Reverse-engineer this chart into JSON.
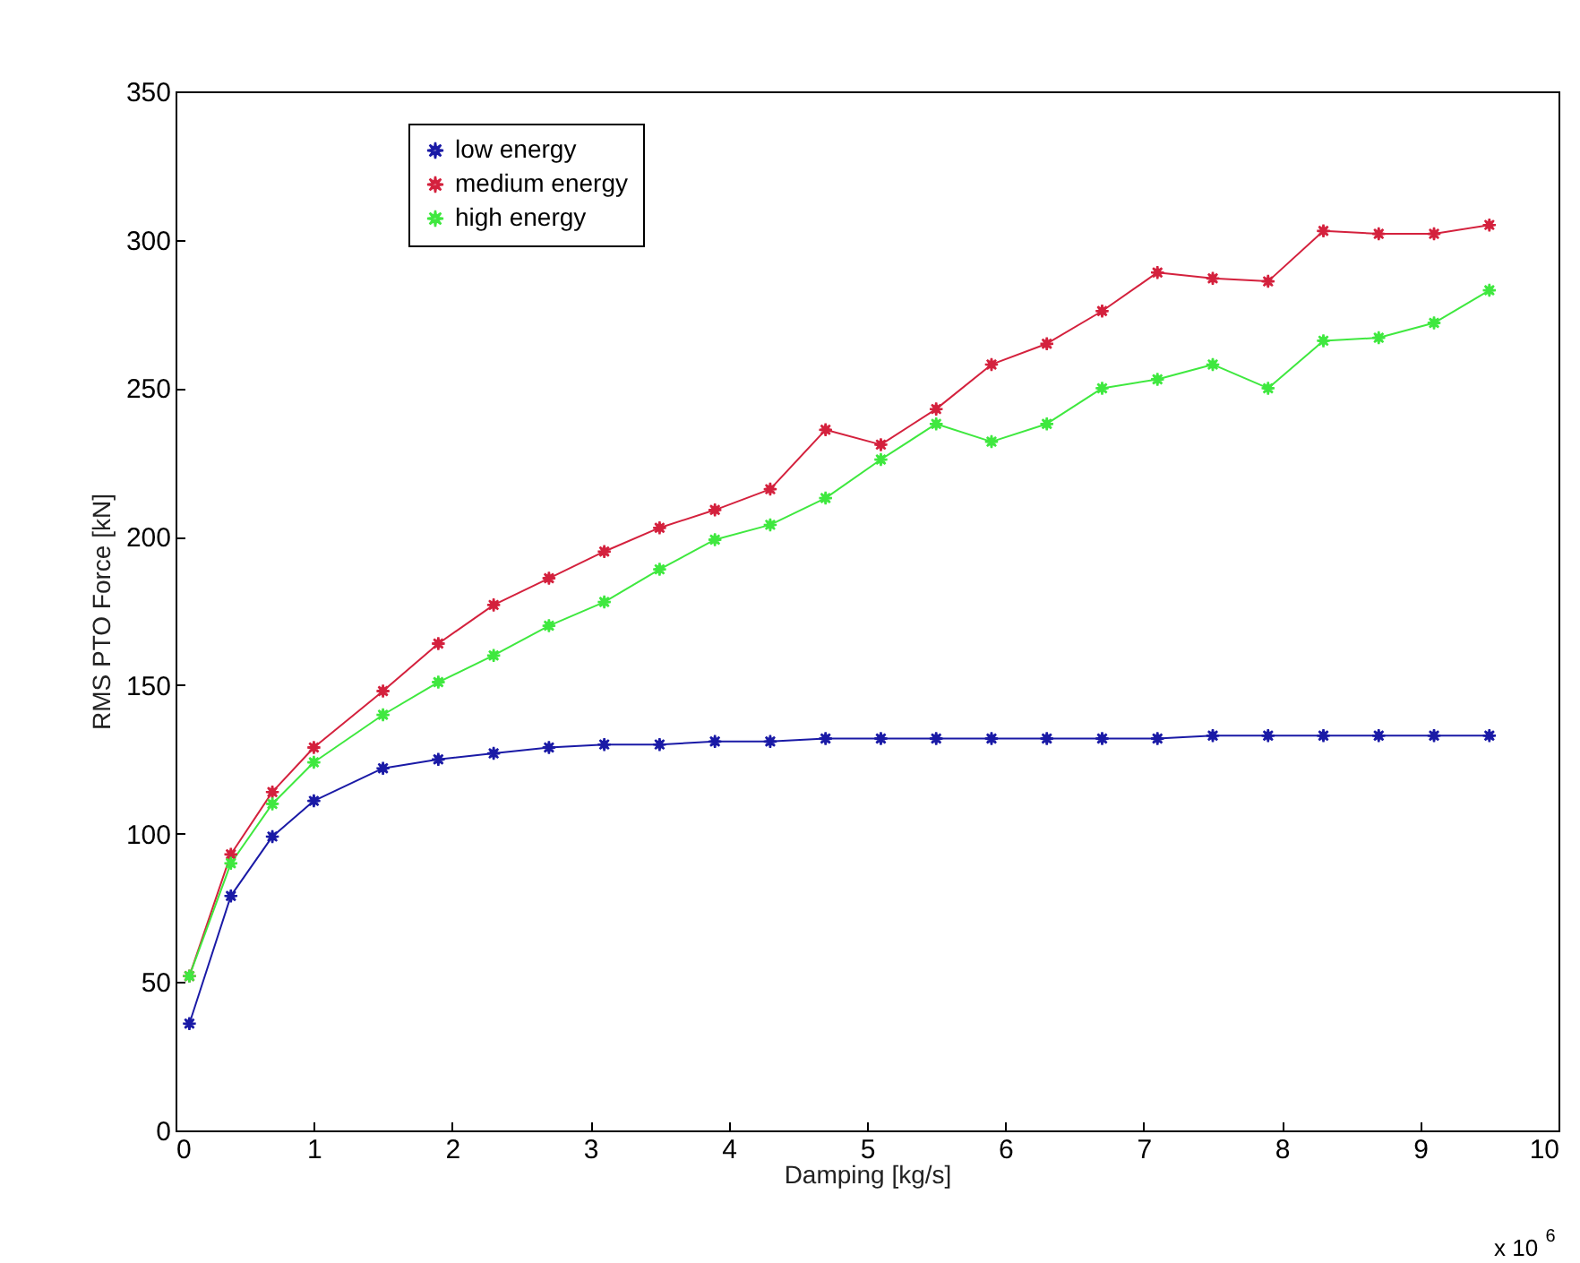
{
  "chart_data": {
    "type": "line",
    "xlabel": "Damping [kg/s]",
    "ylabel": "RMS PTO Force [kN]",
    "x": [
      0.1,
      0.4,
      0.7,
      1.0,
      1.5,
      1.9,
      2.3,
      2.7,
      3.1,
      3.5,
      3.9,
      4.3,
      4.7,
      5.1,
      5.5,
      5.9,
      6.3,
      6.7,
      7.1,
      7.5,
      7.9,
      8.3,
      8.7,
      9.1,
      9.5
    ],
    "series": [
      {
        "name": "low energy",
        "color": "#1a1aa6",
        "values": [
          36,
          79,
          99,
          111,
          122,
          125,
          127,
          129,
          130,
          130,
          131,
          131,
          132,
          132,
          132,
          132,
          132,
          132,
          132,
          133,
          133,
          133,
          133,
          133,
          133
        ]
      },
      {
        "name": "medium energy",
        "color": "#d4213d",
        "values": [
          52,
          93,
          114,
          129,
          148,
          164,
          177,
          186,
          195,
          203,
          209,
          216,
          236,
          231,
          243,
          258,
          265,
          276,
          289,
          287,
          286,
          303,
          302,
          302,
          305
        ]
      },
      {
        "name": "high energy",
        "color": "#3fe83f",
        "values": [
          52,
          90,
          110,
          124,
          140,
          151,
          160,
          170,
          178,
          189,
          199,
          204,
          213,
          226,
          238,
          232,
          238,
          250,
          253,
          258,
          250,
          266,
          267,
          272,
          283
        ]
      }
    ],
    "xlim": [
      0,
      10
    ],
    "xticks": [
      0,
      1,
      2,
      3,
      4,
      5,
      6,
      7,
      8,
      9,
      10
    ],
    "ylim": [
      0,
      350
    ],
    "yticks": [
      0,
      50,
      100,
      150,
      200,
      250,
      300,
      350
    ],
    "annotations": [
      "x 10$^{6}$"
    ],
    "legend": "top left",
    "marker": "star",
    "line_style": "solid",
    "grid": false
  }
}
